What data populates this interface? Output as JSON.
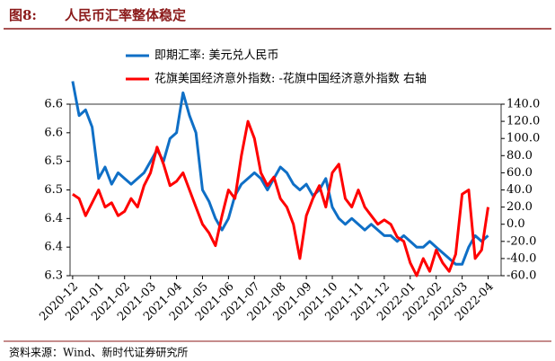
{
  "chart_data": {
    "type": "line",
    "title_number": "图8:",
    "title": "人民币汇率整体稳定",
    "source": "资料来源：Wind、新时代证券研究所",
    "x": [
      0,
      0.25,
      0.5,
      0.75,
      1,
      1.25,
      1.5,
      1.75,
      2,
      2.25,
      2.5,
      2.75,
      3,
      3.25,
      3.5,
      3.75,
      4,
      4.25,
      4.5,
      4.75,
      5,
      5.25,
      5.5,
      5.75,
      6,
      6.25,
      6.5,
      6.75,
      7,
      7.25,
      7.5,
      7.75,
      8,
      8.25,
      8.5,
      8.75,
      9,
      9.25,
      9.5,
      9.75,
      10,
      10.25,
      10.5,
      10.75,
      11,
      11.25,
      11.5,
      11.75,
      12,
      12.25,
      12.5,
      12.75,
      13,
      13.25,
      13.5,
      13.75,
      14,
      14.25,
      14.5,
      14.75,
      15,
      15.25,
      15.5,
      15.75,
      16
    ],
    "xlim": [
      -0.1,
      16.5
    ],
    "xticks": [
      {
        "value": 0,
        "label": "2020-12"
      },
      {
        "value": 1,
        "label": "2021-01"
      },
      {
        "value": 2,
        "label": "2021-02"
      },
      {
        "value": 3,
        "label": "2021-03"
      },
      {
        "value": 4,
        "label": "2021-04"
      },
      {
        "value": 5,
        "label": "2021-05"
      },
      {
        "value": 6,
        "label": "2021-06"
      },
      {
        "value": 7,
        "label": "2021-07"
      },
      {
        "value": 8,
        "label": "2021-08"
      },
      {
        "value": 9,
        "label": "2021-09"
      },
      {
        "value": 10,
        "label": "2021-10"
      },
      {
        "value": 11,
        "label": "2021-11"
      },
      {
        "value": 12,
        "label": "2021-12"
      },
      {
        "value": 13,
        "label": "2022-01"
      },
      {
        "value": 14,
        "label": "2022-02"
      },
      {
        "value": 15,
        "label": "2022-03"
      },
      {
        "value": 16,
        "label": "2022-04"
      }
    ],
    "ylim": [
      6.3,
      6.6
    ],
    "yticks": [
      {
        "value": 6.3,
        "label": "6.3"
      },
      {
        "value": 6.35,
        "label": "6.4"
      },
      {
        "value": 6.4,
        "label": "6.4"
      },
      {
        "value": 6.45,
        "label": "6.5"
      },
      {
        "value": 6.5,
        "label": "6.5"
      },
      {
        "value": 6.55,
        "label": "6.6"
      },
      {
        "value": 6.6,
        "label": "6.6"
      }
    ],
    "y2lim": [
      -60,
      140
    ],
    "y2ticks": [
      {
        "value": -60,
        "label": "-60.0"
      },
      {
        "value": -40,
        "label": "-40.0"
      },
      {
        "value": -20,
        "label": "-20.0"
      },
      {
        "value": 0,
        "label": "0.0"
      },
      {
        "value": 20,
        "label": "20.0"
      },
      {
        "value": 40,
        "label": "40.0"
      },
      {
        "value": 60,
        "label": "60.0"
      },
      {
        "value": 80,
        "label": "80.0"
      },
      {
        "value": 100,
        "label": "100.0"
      },
      {
        "value": 120,
        "label": "120.0"
      },
      {
        "value": 140,
        "label": "140.0"
      }
    ],
    "series": [
      {
        "name": "即期汇率: 美元兑人民币",
        "color": "#0f6fc6",
        "axis": "y",
        "values": [
          6.64,
          6.58,
          6.59,
          6.56,
          6.47,
          6.49,
          6.46,
          6.48,
          6.47,
          6.46,
          6.47,
          6.48,
          6.5,
          6.52,
          6.5,
          6.54,
          6.55,
          6.62,
          6.58,
          6.55,
          6.45,
          6.43,
          6.4,
          6.38,
          6.4,
          6.44,
          6.46,
          6.47,
          6.48,
          6.47,
          6.45,
          6.47,
          6.49,
          6.48,
          6.46,
          6.45,
          6.46,
          6.44,
          6.45,
          6.47,
          6.42,
          6.4,
          6.39,
          6.4,
          6.39,
          6.38,
          6.39,
          6.38,
          6.37,
          6.37,
          6.36,
          6.37,
          6.36,
          6.35,
          6.35,
          6.36,
          6.35,
          6.34,
          6.33,
          6.32,
          6.32,
          6.35,
          6.37,
          6.36,
          6.37
        ]
      },
      {
        "name": "花旗美国经济意外指数: -花旗中国经济意外指数 右轴",
        "color": "#ff0000",
        "axis": "y2",
        "values": [
          35,
          30,
          10,
          25,
          40,
          20,
          25,
          10,
          15,
          30,
          20,
          45,
          60,
          90,
          70,
          45,
          50,
          60,
          40,
          20,
          0,
          -10,
          -25,
          10,
          40,
          30,
          80,
          120,
          100,
          60,
          45,
          55,
          30,
          20,
          0,
          -40,
          10,
          30,
          45,
          20,
          60,
          70,
          30,
          20,
          40,
          20,
          10,
          0,
          5,
          0,
          -15,
          -20,
          -45,
          -60,
          -40,
          -55,
          -30,
          -45,
          -55,
          -35,
          35,
          40,
          -40,
          -30,
          20
        ]
      }
    ]
  }
}
